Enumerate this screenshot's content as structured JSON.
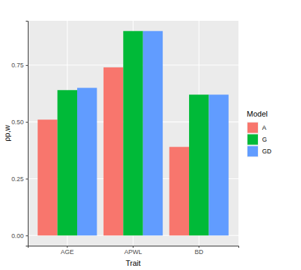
{
  "chart_data": {
    "type": "bar",
    "x_label": "Trait",
    "y_label": "ρp,w",
    "categories": [
      "AGE",
      "APWL",
      "BD"
    ],
    "series": [
      {
        "name": "A",
        "color": "#F8766D",
        "values": [
          0.51,
          0.74,
          0.39
        ]
      },
      {
        "name": "G",
        "color": "#00BA38",
        "values": [
          0.64,
          0.9,
          0.62
        ]
      },
      {
        "name": "GD",
        "color": "#619CFF",
        "values": [
          0.65,
          0.9,
          0.62
        ]
      }
    ],
    "legend_title": "Model",
    "legend": "right",
    "ylim": [
      -0.045,
      0.945
    ],
    "yticks": [
      {
        "value": 0,
        "label": "0.00"
      },
      {
        "value": 0.25,
        "label": "0.25"
      },
      {
        "value": 0.5,
        "label": "0.50"
      },
      {
        "value": 0.75,
        "label": "0.75"
      }
    ],
    "grid": true
  }
}
